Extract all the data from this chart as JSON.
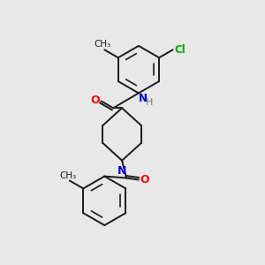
{
  "background_color": "#e8e8e8",
  "bond_color": "#1a1a1a",
  "atom_colors": {
    "O": "#ff0000",
    "N": "#0000cc",
    "Cl": "#00aa00",
    "H": "#777777",
    "C": "#1a1a1a"
  },
  "figsize": [
    3.0,
    3.0
  ],
  "dpi": 100
}
